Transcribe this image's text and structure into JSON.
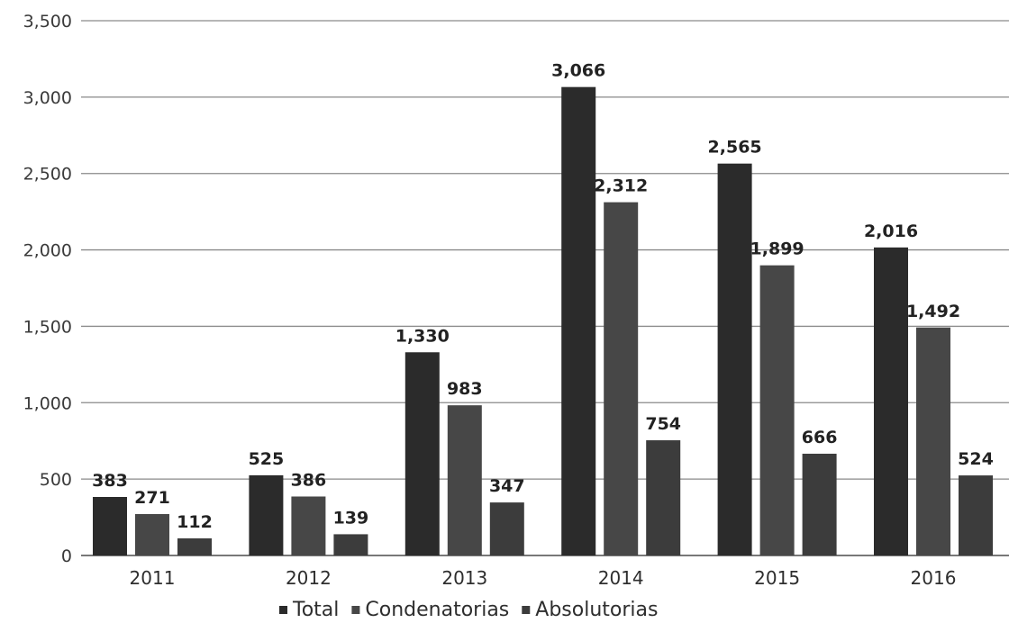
{
  "chart_data": {
    "type": "bar",
    "categories": [
      "2011",
      "2012",
      "2013",
      "2014",
      "2015",
      "2016"
    ],
    "series": [
      {
        "name": "Total",
        "values": [
          383,
          525,
          1330,
          3066,
          2565,
          2016
        ],
        "color": "#2b2b2b"
      },
      {
        "name": "Condenatorias",
        "values": [
          271,
          386,
          983,
          2312,
          1899,
          1492
        ],
        "color": "#474747"
      },
      {
        "name": "Absolutorias",
        "values": [
          112,
          139,
          347,
          754,
          666,
          524
        ],
        "color": "#3c3c3c"
      }
    ],
    "data_labels": [
      [
        "383",
        "525",
        "1,330",
        "3,066",
        "2,565",
        "2,016"
      ],
      [
        "271",
        "386",
        "983",
        "2,312",
        "1,899",
        "1,492"
      ],
      [
        "112",
        "139",
        "347",
        "754",
        "666",
        "524"
      ]
    ],
    "yticks": [
      0,
      500,
      1000,
      1500,
      2000,
      2500,
      3000,
      3500
    ],
    "ytick_labels": [
      "0",
      "500",
      "1,000",
      "1,500",
      "2,000",
      "2,500",
      "3,000",
      "3,500"
    ],
    "ylim": [
      0,
      3500
    ],
    "title": "",
    "xlabel": "",
    "ylabel": "",
    "grid": true,
    "legend_position": "bottom"
  }
}
